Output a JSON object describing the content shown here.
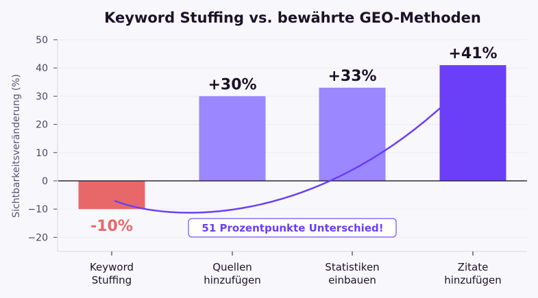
{
  "chart_data": {
    "type": "bar",
    "title": "Keyword Stuffing vs. bewährte GEO-Methoden",
    "xlabel": "",
    "ylabel": "Sichtbarkeitsveränderung (%)",
    "ylim": [
      -25,
      50
    ],
    "yticks": [
      -20,
      -10,
      0,
      10,
      20,
      30,
      40,
      50
    ],
    "ytick_labels": [
      "−20",
      "−10",
      "0",
      "10",
      "20",
      "30",
      "40",
      "50"
    ],
    "grid": true,
    "categories": [
      [
        "Keyword",
        "Stuffing"
      ],
      [
        "Quellen",
        "hinzufügen"
      ],
      [
        "Statistiken",
        "einbauen"
      ],
      [
        "Zitate",
        "hinzufügen"
      ]
    ],
    "values": [
      -10,
      30,
      33,
      41
    ],
    "data_labels": [
      "-10%",
      "+30%",
      "+33%",
      "+41%"
    ],
    "bar_colors": [
      "#e8686a",
      "#9b87ff",
      "#9b87ff",
      "#6a3ff7"
    ],
    "label_colors": [
      "#e8686a",
      "#1a1328",
      "#1a1328",
      "#1a1328"
    ],
    "annotation": {
      "text": "51 Prozentpunkte Unterschied!",
      "color": "#6a3ff7"
    }
  }
}
